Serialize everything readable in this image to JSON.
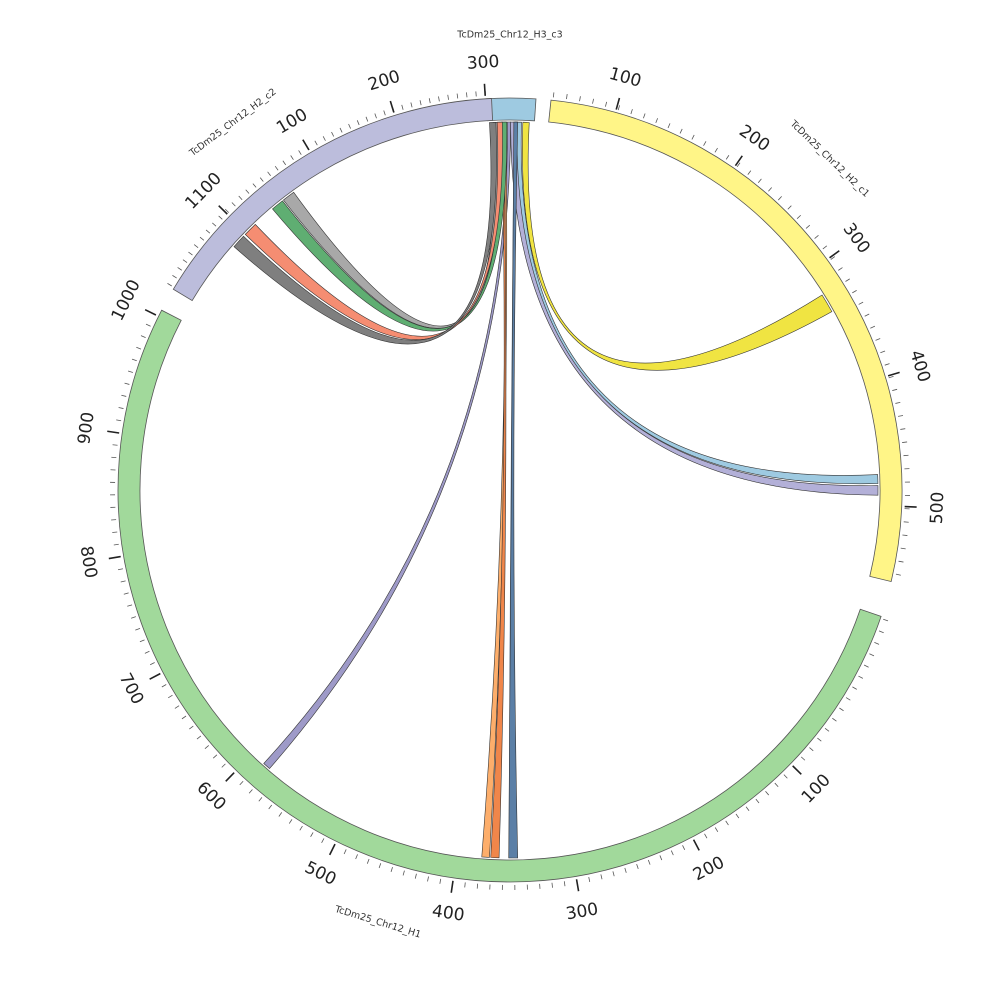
{
  "chromosomes": [
    {
      "id": "h3c3",
      "label": "TcDm25_Chr12_H3_c3",
      "color": "#9ecae1",
      "ticks": []
    },
    {
      "id": "h2c1",
      "label": "TcDm25_Chr12_H2_c1",
      "color": "#fff587",
      "ticks": [
        "100",
        "200",
        "300",
        "400",
        "500"
      ]
    },
    {
      "id": "h1",
      "label": "TcDm25_Chr12_H1",
      "color": "#a1d99b",
      "ticks": [
        "100",
        "200",
        "300",
        "400",
        "500",
        "600",
        "700",
        "800",
        "900",
        "1000",
        "1100"
      ]
    },
    {
      "id": "h2c2",
      "label": "TcDm25_Chr12_H2_c2",
      "color": "#bcbddc",
      "ticks": [
        "100",
        "200",
        "300"
      ]
    }
  ],
  "links": [
    {
      "color": "#f0e442"
    },
    {
      "color": "#9ecae1"
    },
    {
      "color": "#b3b0d8"
    },
    {
      "color": "#9e9ac8"
    },
    {
      "color": "#fdae6b"
    },
    {
      "color": "#f0864a"
    },
    {
      "color": "#5b7fa6"
    },
    {
      "color": "#a8a8a8"
    },
    {
      "color": "#5fae72"
    },
    {
      "color": "#f58d72"
    },
    {
      "color": "#7f7f7f"
    }
  ]
}
